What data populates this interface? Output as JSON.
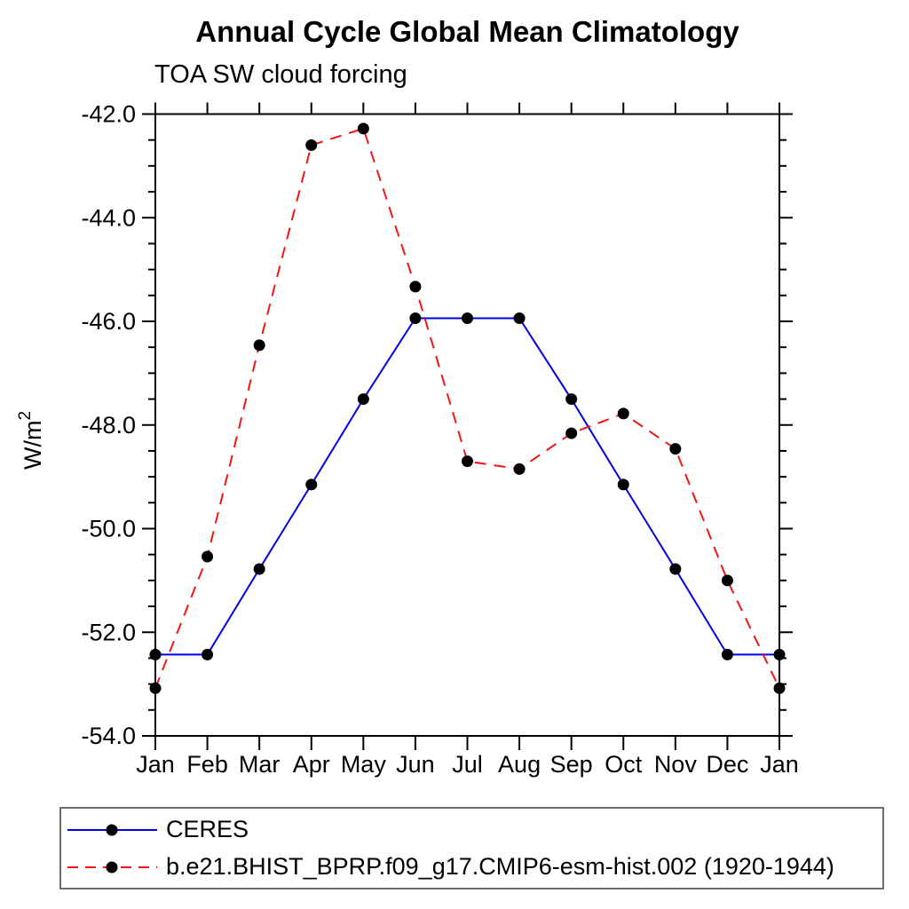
{
  "chart_data": {
    "type": "line",
    "title": "Annual Cycle Global Mean Climatology",
    "subtitle": "TOA SW cloud forcing",
    "ylabel": "W/m²",
    "xlabel": "",
    "categories": [
      "Jan",
      "Feb",
      "Mar",
      "Apr",
      "May",
      "Jun",
      "Jul",
      "Aug",
      "Sep",
      "Oct",
      "Nov",
      "Dec",
      "Jan"
    ],
    "ylim": [
      -54.0,
      -42.0
    ],
    "ytick_values": [
      -42.0,
      -44.0,
      -46.0,
      -48.0,
      -50.0,
      -52.0,
      -54.0
    ],
    "ytick_labels": [
      "-42.0",
      "-44.0",
      "-46.0",
      "-48.0",
      "-50.0",
      "-52.0",
      "-54.0"
    ],
    "ytick_minor_step": 0.5,
    "grid": false,
    "legend_position": "bottom-left",
    "axis_color": "#000000",
    "series": [
      {
        "name": "CERES",
        "color": "#0000e6",
        "line_style": "solid",
        "marker": "filled-circle",
        "marker_color": "#000000",
        "values": [
          -52.43,
          -52.43,
          -50.78,
          -49.15,
          -47.5,
          -45.94,
          -45.94,
          -45.94,
          -47.5,
          -49.15,
          -50.78,
          -52.43,
          -52.43
        ]
      },
      {
        "name": "b.e21.BHIST_BPRP.f09_g17.CMIP6-esm-hist.002 (1920-1944)",
        "color": "#f21515",
        "line_style": "dashed",
        "marker": "filled-circle",
        "marker_color": "#000000",
        "values": [
          -53.08,
          -50.54,
          -46.46,
          -42.6,
          -42.28,
          -45.33,
          -48.7,
          -48.85,
          -48.16,
          -47.78,
          -48.46,
          -51.0,
          -53.08
        ]
      }
    ]
  }
}
